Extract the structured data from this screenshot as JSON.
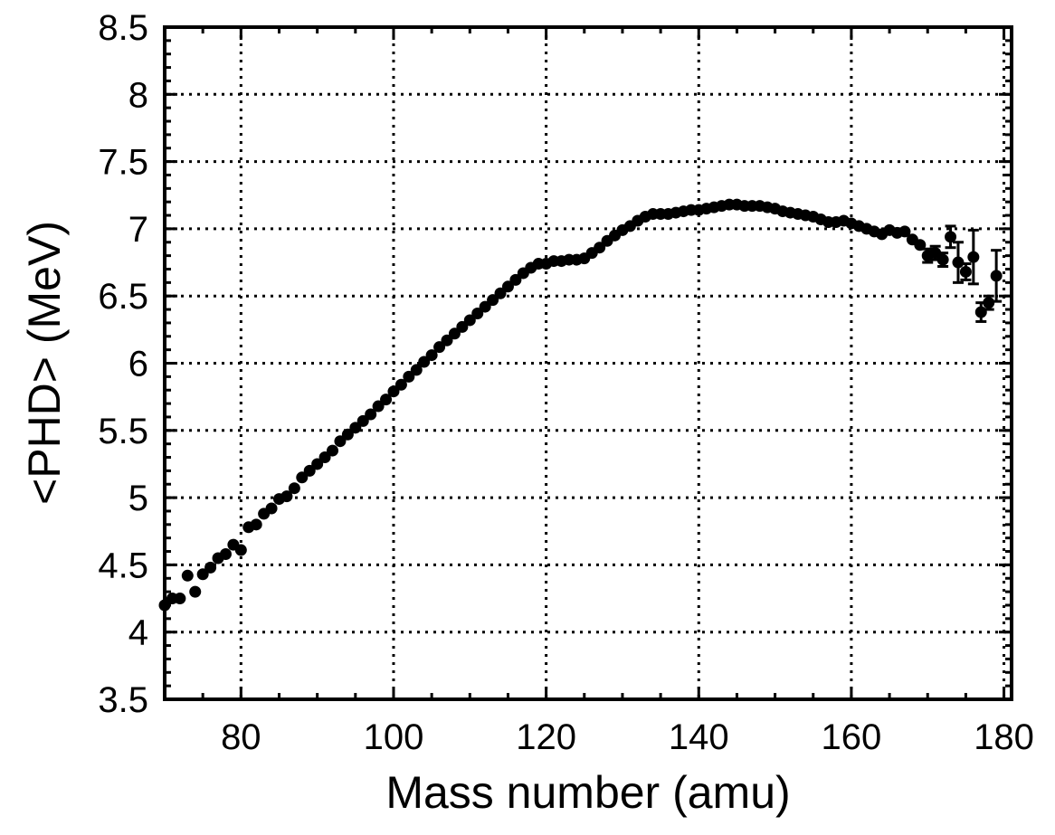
{
  "chart_data": {
    "type": "scatter",
    "xlabel": "Mass number (amu)",
    "ylabel": "<PHD> (MeV)",
    "xlim": [
      70,
      181
    ],
    "ylim": [
      3.5,
      8.5
    ],
    "x_ticks": [
      80,
      100,
      120,
      140,
      160,
      180
    ],
    "y_ticks": [
      "3.5",
      "4",
      "4.5",
      "5",
      "5.5",
      "6",
      "6.5",
      "7",
      "7.5",
      "8",
      "8.5"
    ],
    "grid": true,
    "points": [
      {
        "x": 70,
        "y": 4.2
      },
      {
        "x": 71,
        "y": 4.25
      },
      {
        "x": 72,
        "y": 4.25
      },
      {
        "x": 73,
        "y": 4.42
      },
      {
        "x": 74,
        "y": 4.3
      },
      {
        "x": 75,
        "y": 4.43
      },
      {
        "x": 76,
        "y": 4.48
      },
      {
        "x": 77,
        "y": 4.55
      },
      {
        "x": 78,
        "y": 4.58
      },
      {
        "x": 79,
        "y": 4.65
      },
      {
        "x": 80,
        "y": 4.61
      },
      {
        "x": 81,
        "y": 4.78
      },
      {
        "x": 82,
        "y": 4.8
      },
      {
        "x": 83,
        "y": 4.88
      },
      {
        "x": 84,
        "y": 4.92
      },
      {
        "x": 85,
        "y": 4.99
      },
      {
        "x": 86,
        "y": 5.01
      },
      {
        "x": 87,
        "y": 5.07
      },
      {
        "x": 88,
        "y": 5.15
      },
      {
        "x": 89,
        "y": 5.2
      },
      {
        "x": 90,
        "y": 5.25
      },
      {
        "x": 91,
        "y": 5.3
      },
      {
        "x": 92,
        "y": 5.35
      },
      {
        "x": 93,
        "y": 5.42
      },
      {
        "x": 94,
        "y": 5.47
      },
      {
        "x": 95,
        "y": 5.52
      },
      {
        "x": 96,
        "y": 5.57
      },
      {
        "x": 97,
        "y": 5.62
      },
      {
        "x": 98,
        "y": 5.68
      },
      {
        "x": 99,
        "y": 5.73
      },
      {
        "x": 100,
        "y": 5.79
      },
      {
        "x": 101,
        "y": 5.84
      },
      {
        "x": 102,
        "y": 5.9
      },
      {
        "x": 103,
        "y": 5.95
      },
      {
        "x": 104,
        "y": 6.01
      },
      {
        "x": 105,
        "y": 6.06
      },
      {
        "x": 106,
        "y": 6.12
      },
      {
        "x": 107,
        "y": 6.17
      },
      {
        "x": 108,
        "y": 6.22
      },
      {
        "x": 109,
        "y": 6.27
      },
      {
        "x": 110,
        "y": 6.32
      },
      {
        "x": 111,
        "y": 6.37
      },
      {
        "x": 112,
        "y": 6.42
      },
      {
        "x": 113,
        "y": 6.47
      },
      {
        "x": 114,
        "y": 6.52
      },
      {
        "x": 115,
        "y": 6.57
      },
      {
        "x": 116,
        "y": 6.62
      },
      {
        "x": 117,
        "y": 6.67
      },
      {
        "x": 118,
        "y": 6.71
      },
      {
        "x": 119,
        "y": 6.74
      },
      {
        "x": 120,
        "y": 6.74
      },
      {
        "x": 121,
        "y": 6.76
      },
      {
        "x": 122,
        "y": 6.76
      },
      {
        "x": 123,
        "y": 6.77
      },
      {
        "x": 124,
        "y": 6.77
      },
      {
        "x": 125,
        "y": 6.78
      },
      {
        "x": 126,
        "y": 6.82
      },
      {
        "x": 127,
        "y": 6.86
      },
      {
        "x": 128,
        "y": 6.91
      },
      {
        "x": 129,
        "y": 6.95
      },
      {
        "x": 130,
        "y": 6.99
      },
      {
        "x": 131,
        "y": 7.02
      },
      {
        "x": 132,
        "y": 7.06
      },
      {
        "x": 133,
        "y": 7.09
      },
      {
        "x": 134,
        "y": 7.11
      },
      {
        "x": 135,
        "y": 7.11
      },
      {
        "x": 136,
        "y": 7.11
      },
      {
        "x": 137,
        "y": 7.12
      },
      {
        "x": 138,
        "y": 7.13
      },
      {
        "x": 139,
        "y": 7.14
      },
      {
        "x": 140,
        "y": 7.14
      },
      {
        "x": 141,
        "y": 7.15
      },
      {
        "x": 142,
        "y": 7.16
      },
      {
        "x": 143,
        "y": 7.17
      },
      {
        "x": 144,
        "y": 7.18
      },
      {
        "x": 145,
        "y": 7.18
      },
      {
        "x": 146,
        "y": 7.17
      },
      {
        "x": 147,
        "y": 7.17
      },
      {
        "x": 148,
        "y": 7.17
      },
      {
        "x": 149,
        "y": 7.16
      },
      {
        "x": 150,
        "y": 7.15
      },
      {
        "x": 151,
        "y": 7.13
      },
      {
        "x": 152,
        "y": 7.12
      },
      {
        "x": 153,
        "y": 7.11
      },
      {
        "x": 154,
        "y": 7.1
      },
      {
        "x": 155,
        "y": 7.09
      },
      {
        "x": 156,
        "y": 7.07
      },
      {
        "x": 157,
        "y": 7.05
      },
      {
        "x": 158,
        "y": 7.05
      },
      {
        "x": 159,
        "y": 7.06
      },
      {
        "x": 160,
        "y": 7.04
      },
      {
        "x": 161,
        "y": 7.02
      },
      {
        "x": 162,
        "y": 7.0
      },
      {
        "x": 163,
        "y": 6.98
      },
      {
        "x": 164,
        "y": 6.96
      },
      {
        "x": 165,
        "y": 6.99
      },
      {
        "x": 166,
        "y": 6.97
      },
      {
        "x": 167,
        "y": 6.98
      },
      {
        "x": 168,
        "y": 6.92
      },
      {
        "x": 169,
        "y": 6.88
      },
      {
        "x": 170,
        "y": 6.8,
        "err": 0.05
      },
      {
        "x": 171,
        "y": 6.82,
        "err": 0.05
      },
      {
        "x": 172,
        "y": 6.77,
        "err": 0.05
      },
      {
        "x": 173,
        "y": 6.94,
        "err": 0.08
      },
      {
        "x": 174,
        "y": 6.75,
        "err": 0.15
      },
      {
        "x": 175,
        "y": 6.68,
        "err": 0.06
      },
      {
        "x": 176,
        "y": 6.79,
        "err": 0.2
      },
      {
        "x": 177,
        "y": 6.38,
        "err": 0.07
      },
      {
        "x": 178,
        "y": 6.45,
        "err": 0.05
      },
      {
        "x": 179,
        "y": 6.65,
        "err": 0.19
      }
    ]
  }
}
